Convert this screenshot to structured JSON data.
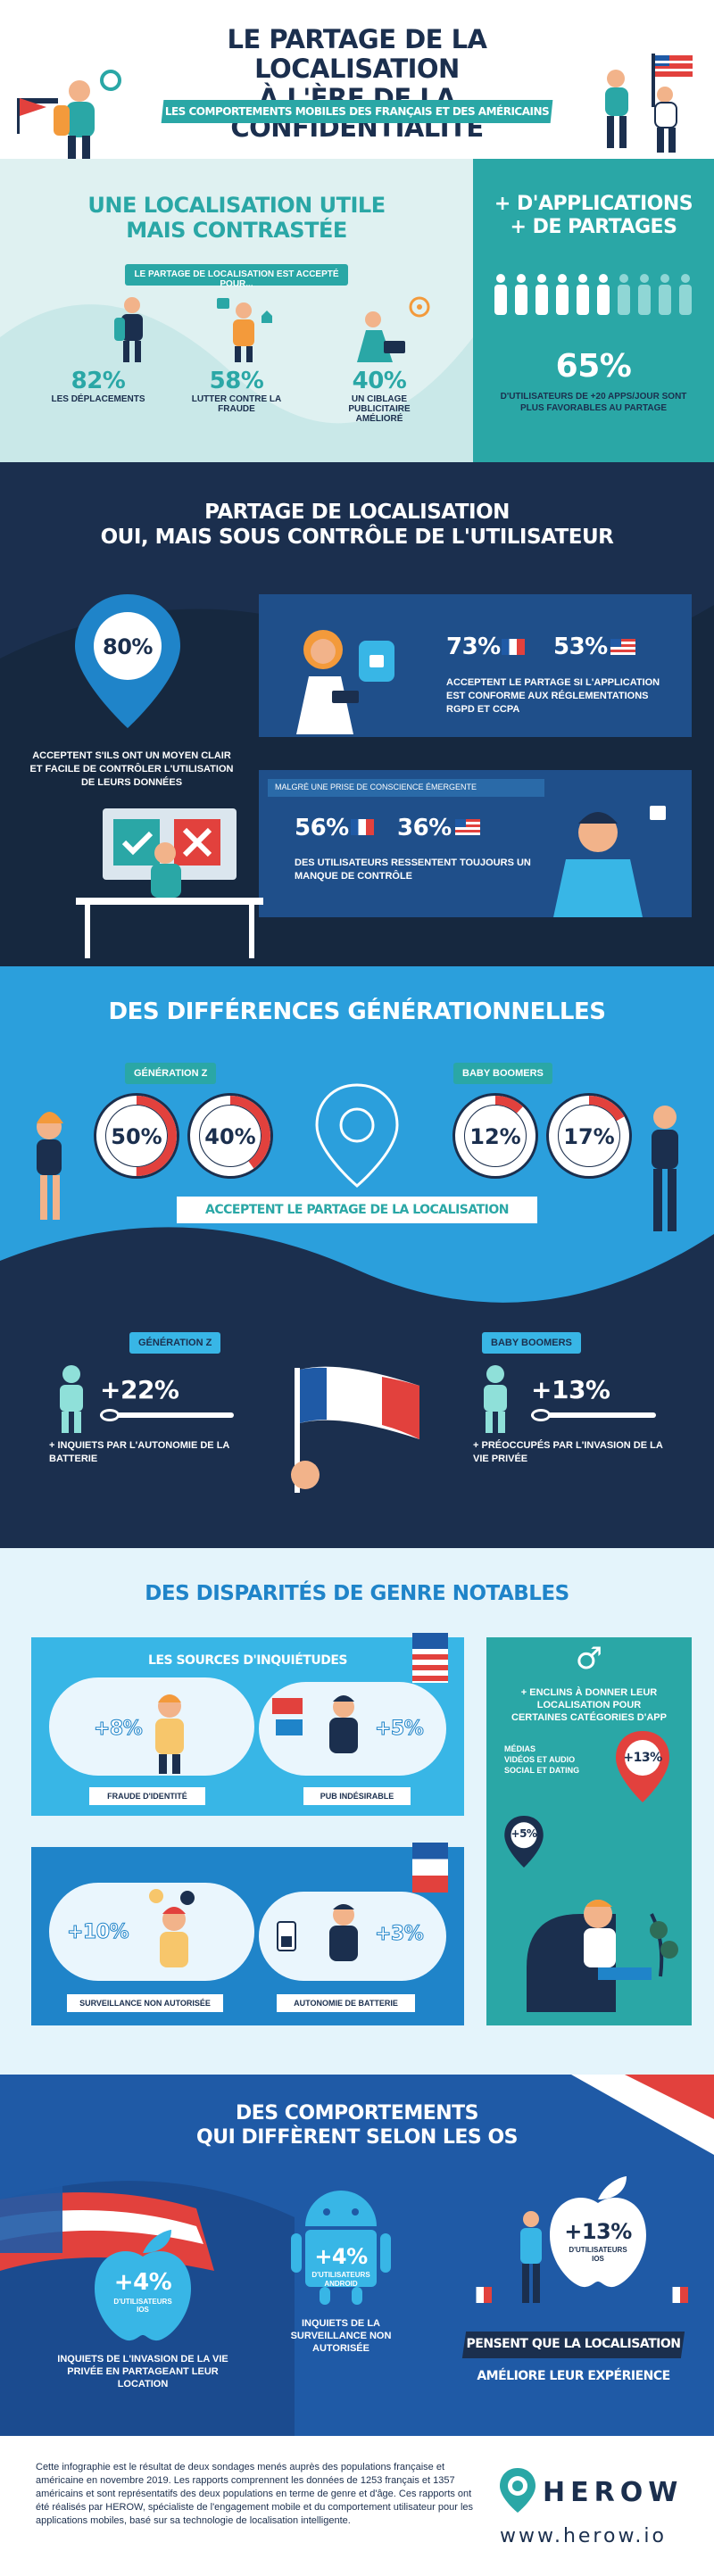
{
  "colors": {
    "navy": "#1b2f4e",
    "teal": "#2aa7a6",
    "lightTeal": "#d7efef",
    "blue": "#1f84c9",
    "skyBlue": "#38b6e6",
    "red": "#e2413d",
    "cream": "#fdf1e6"
  },
  "header": {
    "title_line1": "LE PARTAGE DE LA LOCALISATION",
    "title_line2": "À L'ÈRE DE LA CONFIDENTIALITÉ",
    "subtitle": "LES COMPORTEMENTS MOBILES DES FRANÇAIS ET DES AMÉRICAINS"
  },
  "sec1": {
    "title_line1": "UNE LOCALISATION UTILE",
    "title_line2": "MAIS CONTRASTÉE",
    "badge": "LE PARTAGE DE LOCALISATION EST ACCEPTÉ POUR...",
    "stats": [
      {
        "value": "82%",
        "label": "LES DÉPLACEMENTS"
      },
      {
        "value": "58%",
        "label": "LUTTER CONTRE LA FRAUDE"
      },
      {
        "value": "40%",
        "label": "UN CIBLAGE PUBLICITAIRE AMÉLIORÉ"
      }
    ]
  },
  "sec1b": {
    "title_line1": "+ D'APPLICATIONS",
    "title_line2": "+ DE PARTAGES",
    "value": "65%",
    "label": "D'UTILISATEURS DE +20 APPS/JOUR SONT PLUS FAVORABLES AU PARTAGE",
    "people_highlighted": 6,
    "people_total": 10
  },
  "sec2": {
    "title_line1": "PARTAGE DE LOCALISATION",
    "title_line2": "OUI, MAIS SOUS CONTRÔLE DE L'UTILISATEUR",
    "pin_value": "80%",
    "pin_label": "ACCEPTENT S'ILS ONT UN MOYEN CLAIR ET FACILE DE CONTRÔLER L'UTILISATION DE LEURS DONNÉES",
    "box1": {
      "fr": "73%",
      "us": "53%",
      "label": "ACCEPTENT LE PARTAGE SI L'APPLICATION EST CONFORME AUX RÉGLEMENTATIONS RGPD ET CCPA"
    },
    "box2": {
      "tag": "MALGRÉ UNE PRISE DE CONSCIENCE ÉMERGENTE",
      "fr": "56%",
      "us": "36%",
      "label": "DES UTILISATEURS RESSENTENT TOUJOURS UN MANQUE DE CONTRÔLE"
    }
  },
  "sec3": {
    "title": "DES DIFFÉRENCES GÉNÉRATIONNELLES",
    "genz": "GÉNÉRATION Z",
    "boomers": "BABY BOOMERS",
    "rings": [
      {
        "value": "50%",
        "fill": 0.5
      },
      {
        "value": "40%",
        "fill": 0.4
      },
      {
        "value": "12%",
        "fill": 0.12
      },
      {
        "value": "17%",
        "fill": 0.17
      }
    ],
    "banner": "ACCEPTENT LE PARTAGE DE LA LOCALISATION",
    "genz_b": "GÉNÉRATION Z",
    "genz_value": "+22%",
    "genz_label": "+ INQUIETS PAR L'AUTONOMIE DE LA BATTERIE",
    "boomers_b": "BABY BOOMERS",
    "boomers_value": "+13%",
    "boomers_label": "+ PRÉOCCUPÉS PAR L'INVASION DE LA VIE PRIVÉE"
  },
  "sec4": {
    "title": "DES DISPARITÉS DE GENRE NOTABLES",
    "box_title": "LES SOURCES D'INQUIÉTUDES",
    "items": [
      {
        "value": "+8%",
        "label": "FRAUDE D'IDENTITÉ"
      },
      {
        "value": "+5%",
        "label": "PUB INDÉSIRABLE"
      },
      {
        "value": "+10%",
        "label": "SURVEILLANCE NON AUTORISÉE"
      },
      {
        "value": "+3%",
        "label": "AUTONOMIE DE BATTERIE"
      }
    ],
    "male_symbol": "♂",
    "right_title": "+ ENCLINS À DONNER LEUR LOCALISATION POUR CERTAINES CATÉGORIES D'APP",
    "cats": [
      "MÉDIAS",
      "VIDÉOS ET AUDIO",
      "SOCIAL ET DATING"
    ],
    "v1": "+13%",
    "v2": "+5%"
  },
  "sec5": {
    "title_line1": "DES COMPORTEMENTS",
    "title_line2": "QUI DIFFÈRENT SELON LES OS",
    "ios_value": "+4%",
    "ios_sub": "D'UTILISATEURS IOS",
    "ios_label": "INQUIETS DE L'INVASION DE LA VIE PRIVÉE EN PARTAGEANT LEUR LOCATION",
    "and_value": "+4%",
    "and_sub": "D'UTILISATEURS ANDROID",
    "and_label": "INQUIETS DE LA SURVEILLANCE NON AUTORISÉE",
    "ios2_value": "+13%",
    "ios2_sub": "D'UTILISATEURS IOS",
    "ios2_banner": "PENSENT QUE LA LOCALISATION",
    "ios2_label": "AMÉLIORE LEUR EXPÉRIENCE"
  },
  "footer": {
    "text": "Cette infographie est le résultat de deux sondages menés auprès des populations française et américaine en novembre 2019. Les rapports comprennent les données de 1253 français et 1357 américains et sont représentatifs des deux populations en terme de genre et d'âge. Ces rapports ont été réalisés par HEROW, spécialiste de l'engagement mobile et du comportement utilisateur pour les applications mobiles, basé sur sa technologie de localisation intelligente.",
    "brand": "HEROW",
    "url": "www.herow.io"
  }
}
